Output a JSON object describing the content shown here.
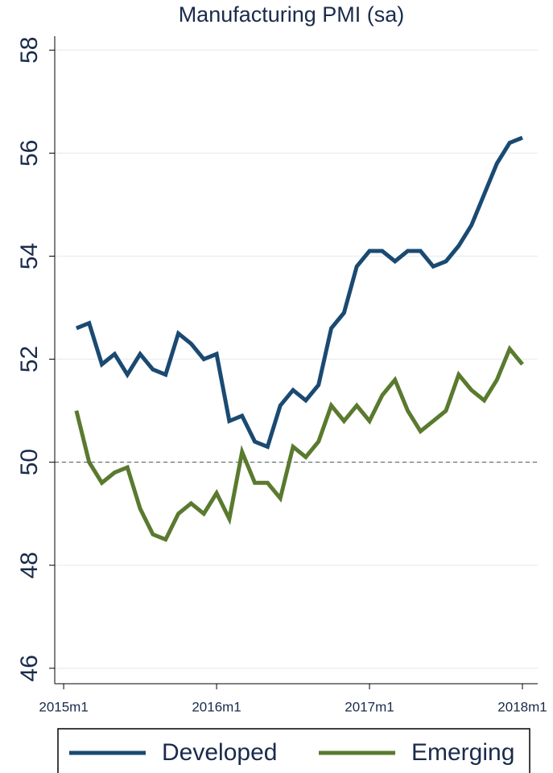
{
  "chart_data": {
    "type": "line",
    "title": "Manufacturing PMI (sa)",
    "x": [
      661,
      662,
      663,
      664,
      665,
      666,
      667,
      668,
      669,
      670,
      671,
      672,
      673,
      674,
      675,
      676,
      677,
      678,
      679,
      680,
      681,
      682,
      683,
      684,
      685,
      686,
      687,
      688,
      689,
      690,
      691,
      692,
      693,
      694,
      695,
      696
    ],
    "xlim": [
      659.3,
      697.2
    ],
    "xticks": [
      {
        "value": 660,
        "label": "2015m1"
      },
      {
        "value": 672,
        "label": "2016m1"
      },
      {
        "value": 684,
        "label": "2017m1"
      },
      {
        "value": 696,
        "label": "2018m1"
      }
    ],
    "ylim": [
      45.7,
      58.27
    ],
    "yticks": [
      46,
      48,
      50,
      52,
      54,
      56,
      58
    ],
    "grid": true,
    "refline": 50,
    "legend": "bottom",
    "series": [
      {
        "name": "Developed",
        "color": "#1a4a72",
        "values": [
          52.6,
          52.7,
          51.9,
          52.1,
          51.7,
          52.1,
          51.8,
          51.7,
          52.5,
          52.3,
          52.0,
          52.1,
          50.8,
          50.9,
          50.4,
          50.3,
          51.1,
          51.4,
          51.2,
          51.5,
          52.6,
          52.9,
          53.8,
          54.1,
          54.1,
          53.9,
          54.1,
          54.1,
          53.8,
          53.9,
          54.2,
          54.6,
          55.2,
          55.8,
          56.2,
          56.3
        ]
      },
      {
        "name": "Emerging",
        "color": "#5a7a2f",
        "values": [
          51.0,
          50.0,
          49.6,
          49.8,
          49.9,
          49.1,
          48.6,
          48.5,
          49.0,
          49.2,
          49.0,
          49.4,
          48.9,
          50.2,
          49.6,
          49.6,
          49.3,
          50.3,
          50.1,
          50.4,
          51.1,
          50.8,
          51.1,
          50.8,
          51.3,
          51.6,
          51.0,
          50.6,
          50.8,
          51.0,
          51.7,
          51.4,
          51.2,
          51.6,
          52.2,
          51.9
        ]
      }
    ]
  }
}
